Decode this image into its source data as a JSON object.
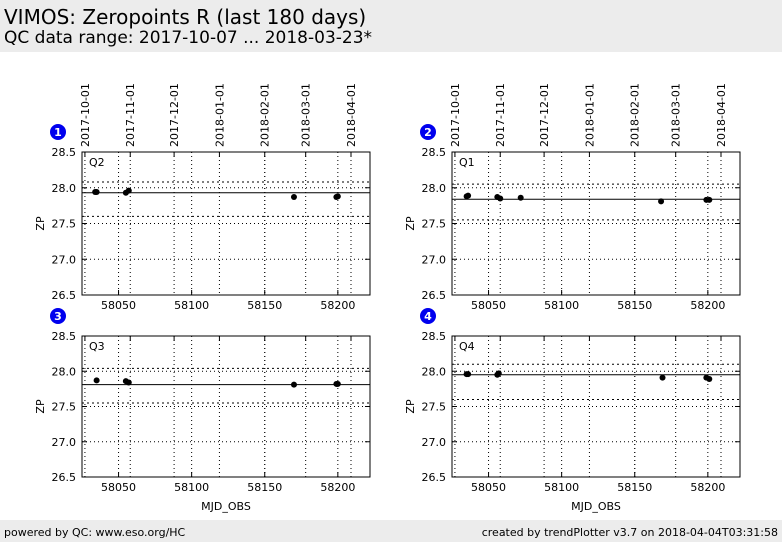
{
  "header": {
    "title": "VIMOS: Zeropoints R (last 180 days)",
    "subtitle": "QC data range: 2017-10-07 ... 2018-03-23*"
  },
  "footer": {
    "left": "powered by QC: www.eso.org/HC",
    "right": "created by trendPlotter v3.7 on 2018-04-04T03:31:58"
  },
  "colors": {
    "marker": "#000000",
    "badge": "#0000ee",
    "header_bg": "#ececec"
  },
  "chart_data": [
    {
      "type": "scatter",
      "panel_number": "1",
      "label": "Q2",
      "xlabel": "",
      "ylabel": "ZP",
      "xlim": [
        58025,
        58222
      ],
      "ylim": [
        26.5,
        28.5
      ],
      "xticks": [
        58050,
        58100,
        58150,
        58200
      ],
      "yticks": [
        26.5,
        27.0,
        27.5,
        28.0,
        28.5
      ],
      "top_dates": [
        "2017-10-01",
        "2017-11-01",
        "2017-12-01",
        "2018-01-01",
        "2018-02-01",
        "2018-03-01",
        "2018-04-01"
      ],
      "top_date_mjd": [
        58027,
        58058,
        58088,
        58119,
        58150,
        58178,
        58209
      ],
      "grid": true,
      "reference_line": 27.93,
      "dotted_lines": [
        28.08,
        27.6
      ],
      "points": [
        [
          58034,
          27.94
        ],
        [
          58035,
          27.94
        ],
        [
          58055,
          27.93
        ],
        [
          58057,
          27.96
        ],
        [
          58170,
          27.87
        ],
        [
          58199,
          27.87
        ],
        [
          58200,
          27.88
        ]
      ]
    },
    {
      "type": "scatter",
      "panel_number": "2",
      "label": "Q1",
      "xlabel": "",
      "ylabel": "ZP",
      "xlim": [
        58025,
        58222
      ],
      "ylim": [
        26.5,
        28.5
      ],
      "xticks": [
        58050,
        58100,
        58150,
        58200
      ],
      "yticks": [
        26.5,
        27.0,
        27.5,
        28.0,
        28.5
      ],
      "top_dates": [
        "2017-10-01",
        "2017-11-01",
        "2017-12-01",
        "2018-01-01",
        "2018-02-01",
        "2018-03-01",
        "2018-04-01"
      ],
      "top_date_mjd": [
        58027,
        58058,
        58088,
        58119,
        58150,
        58178,
        58209
      ],
      "grid": true,
      "reference_line": 27.84,
      "dotted_lines": [
        28.05,
        27.55
      ],
      "points": [
        [
          58035,
          27.88
        ],
        [
          58036,
          27.89
        ],
        [
          58056,
          27.87
        ],
        [
          58058,
          27.85
        ],
        [
          58072,
          27.86
        ],
        [
          58168,
          27.81
        ],
        [
          58199,
          27.83
        ],
        [
          58201,
          27.83
        ]
      ]
    },
    {
      "type": "scatter",
      "panel_number": "3",
      "label": "Q3",
      "xlabel": "MJD_OBS",
      "ylabel": "ZP",
      "xlim": [
        58025,
        58222
      ],
      "ylim": [
        26.5,
        28.5
      ],
      "xticks": [
        58050,
        58100,
        58150,
        58200
      ],
      "yticks": [
        26.5,
        27.0,
        27.5,
        28.0,
        28.5
      ],
      "top_dates": [],
      "top_date_mjd": [
        58027,
        58058,
        58088,
        58119,
        58150,
        58178,
        58209
      ],
      "grid": true,
      "reference_line": 27.81,
      "dotted_lines": [
        28.04,
        27.55
      ],
      "points": [
        [
          58035,
          27.87
        ],
        [
          58055,
          27.86
        ],
        [
          58057,
          27.84
        ],
        [
          58170,
          27.81
        ],
        [
          58199,
          27.82
        ],
        [
          58200,
          27.82
        ]
      ]
    },
    {
      "type": "scatter",
      "panel_number": "4",
      "label": "Q4",
      "xlabel": "MJD_OBS",
      "ylabel": "ZP",
      "xlim": [
        58025,
        58222
      ],
      "ylim": [
        26.5,
        28.5
      ],
      "xticks": [
        58050,
        58100,
        58150,
        58200
      ],
      "yticks": [
        26.5,
        27.0,
        27.5,
        28.0,
        28.5
      ],
      "top_dates": [],
      "top_date_mjd": [
        58027,
        58058,
        58088,
        58119,
        58150,
        58178,
        58209
      ],
      "grid": true,
      "reference_line": 27.95,
      "dotted_lines": [
        28.1,
        27.6
      ],
      "points": [
        [
          58035,
          27.96
        ],
        [
          58036,
          27.96
        ],
        [
          58056,
          27.95
        ],
        [
          58057,
          27.97
        ],
        [
          58169,
          27.91
        ],
        [
          58199,
          27.91
        ],
        [
          58201,
          27.89
        ]
      ]
    }
  ]
}
